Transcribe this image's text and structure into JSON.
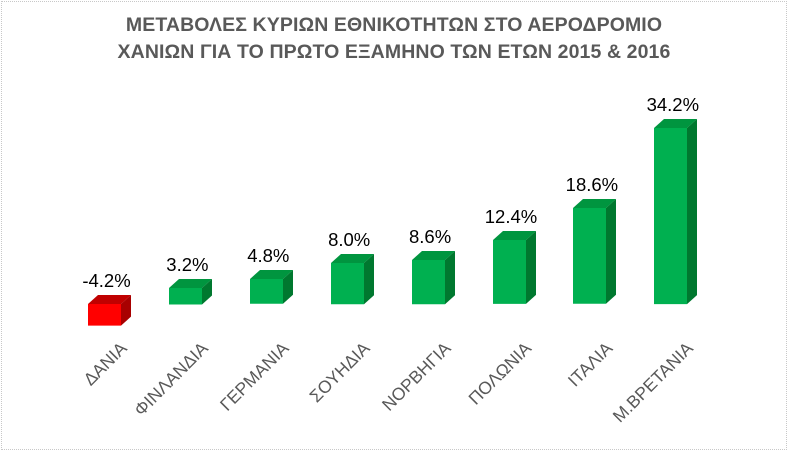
{
  "chart_data": {
    "type": "bar",
    "title": "ΜΕΤΑΒΟΛΕΣ ΚΥΡΙΩΝ ΕΘΝΙΚΟΤΗΤΩΝ ΣΤΟ ΑΕΡΟΔΡΟΜΙΟ ΧΑΝΙΩΝ ΓΙΑ ΤΟ ΠΡΩΤΟ ΕΞΑΜΗΝΟ ΤΩΝ ΕΤΩΝ 2015 & 2016",
    "title_lines": [
      "ΜΕΤΑΒΟΛΕΣ ΚΥΡΙΩΝ ΕΘΝΙΚΟΤΗΤΩΝ ΣΤΟ ΑΕΡΟΔΡΟΜΙΟ",
      "ΧΑΝΙΩΝ ΓΙΑ ΤΟ ΠΡΩΤΟ ΕΞΑΜΗΝΟ ΤΩΝ ΕΤΩΝ 2015 & 2016"
    ],
    "categories": [
      "ΔΑΝΙΑ",
      "ΦΙΝΛΑΝΔΙΑ",
      "ΓΕΡΜΑΝΙΑ",
      "ΣΟΥΗΔΙΑ",
      "ΝΟΡΒΗΓΙΑ",
      "ΠΟΛΩΝΙΑ",
      "ΙΤΑΛΙΑ",
      "Μ.ΒΡΕΤΑΝΙΑ"
    ],
    "values": [
      -4.2,
      3.2,
      4.8,
      8.0,
      8.6,
      12.4,
      18.6,
      34.2
    ],
    "value_labels": [
      "-4.2%",
      "3.2%",
      "4.8%",
      "8.0%",
      "8.6%",
      "12.4%",
      "18.6%",
      "34.2%"
    ],
    "unit": "%",
    "xlabel": "",
    "ylabel": "",
    "y_axis_visible": false,
    "grid": false,
    "legend": null,
    "style": "3d-column",
    "colors": {
      "positive": "#00b050",
      "positive_side": "#00782f",
      "positive_top": "#00953f",
      "negative": "#ff0000",
      "negative_side": "#a80000",
      "negative_top": "#c00000",
      "title": "#595959",
      "category_label": "#595959",
      "value_label": "#000000"
    }
  }
}
